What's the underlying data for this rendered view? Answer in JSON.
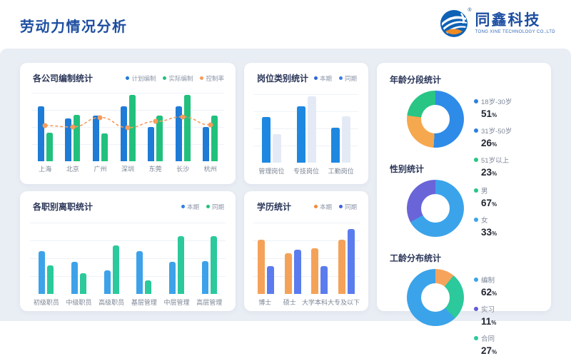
{
  "header": {
    "title": "劳动力情况分析",
    "brand": {
      "name": "同鑫科技",
      "tagline": "TONG XINE TECHNOLOGY CO.,LTD",
      "registered": "®"
    }
  },
  "theme": {
    "header_title_color": "#1D4EA1",
    "content_background": "#E9EDF4",
    "panel_background": "#FFFFFF",
    "panel_title_color": "#2A3558"
  },
  "chart_data": [
    {
      "id": "company-staffing",
      "type": "bar",
      "title": "各公司编制统计",
      "categories": [
        "上海",
        "北京",
        "广州",
        "深圳",
        "东莞",
        "长沙",
        "杭州"
      ],
      "series": [
        {
          "name": "计划编制",
          "kind": "bar",
          "color": "#1E7BD6",
          "dot": "#1E7BD6",
          "values": [
            80,
            62,
            67,
            80,
            50,
            80,
            50
          ]
        },
        {
          "name": "实际编制",
          "kind": "bar",
          "color": "#21C17D",
          "dot": "#21C17D",
          "values": [
            42,
            68,
            41,
            97,
            67,
            97,
            67
          ]
        },
        {
          "name": "控制率",
          "kind": "line",
          "color": "#F79B5B",
          "dot": "#F79B5B",
          "values": [
            52,
            50,
            64,
            49,
            58,
            65,
            53
          ]
        }
      ],
      "ylim": [
        0,
        100
      ],
      "grid": true,
      "legend_position": "top-right"
    },
    {
      "id": "position-category",
      "type": "bar",
      "title": "岗位类别统计",
      "categories": [
        "管理岗位",
        "专技岗位",
        "工勤岗位"
      ],
      "series": [
        {
          "name": "本期",
          "kind": "bar",
          "color": "#1E88E0",
          "dot": "#2F66D9",
          "values": [
            67,
            82,
            51
          ]
        },
        {
          "name": "同期",
          "kind": "bar",
          "color": "#E4EAF5",
          "dot": "#3E7BE8",
          "values": [
            42,
            97,
            68
          ]
        }
      ],
      "ylim": [
        0,
        100
      ],
      "grid": true,
      "legend_position": "top-right"
    },
    {
      "id": "age-segments",
      "type": "pie",
      "title": "年龄分段统计",
      "unit": "%",
      "slices": [
        {
          "label": "18岁-30岁",
          "value": 51,
          "color": "#2E8BE8",
          "dot": "#2E7FE0"
        },
        {
          "label": "31岁-50岁",
          "value": 26,
          "color": "#F6A84E",
          "dot": "#2E7FE0"
        },
        {
          "label": "51岁以上",
          "value": 23,
          "color": "#28C585",
          "dot": "#28C585"
        }
      ]
    },
    {
      "id": "gender",
      "type": "pie",
      "title": "性别统计",
      "unit": "%",
      "slices": [
        {
          "label": "男",
          "value": 67,
          "color": "#3BA3EA",
          "dot": "#28C585"
        },
        {
          "label": "女",
          "value": 33,
          "color": "#6A64D9",
          "dot": "#3BA3EA"
        }
      ]
    },
    {
      "id": "resignation-by-level",
      "type": "bar",
      "title": "各职别离职统计",
      "categories": [
        "初级职员",
        "中级职员",
        "高级职员",
        "基层管理",
        "中层管理",
        "高层管理"
      ],
      "series": [
        {
          "name": "本期",
          "kind": "bar",
          "color": "#3DA2E9",
          "dot": "#2F7FE0",
          "values": [
            60,
            45,
            33,
            60,
            45,
            46
          ]
        },
        {
          "name": "同期",
          "kind": "bar",
          "color": "#2BC99B",
          "dot": "#21C17D",
          "values": [
            40,
            29,
            68,
            19,
            81,
            81
          ]
        }
      ],
      "ylim": [
        0,
        100
      ],
      "grid": true,
      "legend_position": "top-right"
    },
    {
      "id": "education",
      "type": "bar",
      "title": "学历统计",
      "categories": [
        "博士",
        "硕士",
        "大学本科",
        "大专及以下"
      ],
      "series": [
        {
          "name": "本期",
          "kind": "bar",
          "color": "#F5A259",
          "dot": "#F08A3C",
          "values": [
            76,
            57,
            64,
            76
          ]
        },
        {
          "name": "同期",
          "kind": "bar",
          "color": "#5B7CEE",
          "dot": "#3E5FE0",
          "values": [
            39,
            62,
            39,
            91
          ]
        }
      ],
      "ylim": [
        0,
        100
      ],
      "grid": true,
      "legend_position": "top-right"
    },
    {
      "id": "work-age",
      "type": "pie",
      "title": "工龄分布统计",
      "unit": "%",
      "visual_order": [
        1,
        2,
        0
      ],
      "slices": [
        {
          "label": "编制",
          "value": 62,
          "color": "#3BA3EA",
          "dot": "#3BA3EA"
        },
        {
          "label": "实习",
          "value": 11,
          "color": "#F6A45C",
          "dot": "#5F5BD8"
        },
        {
          "label": "合同",
          "value": 27,
          "color": "#2BC99B",
          "dot": "#2BC99B"
        }
      ]
    }
  ]
}
